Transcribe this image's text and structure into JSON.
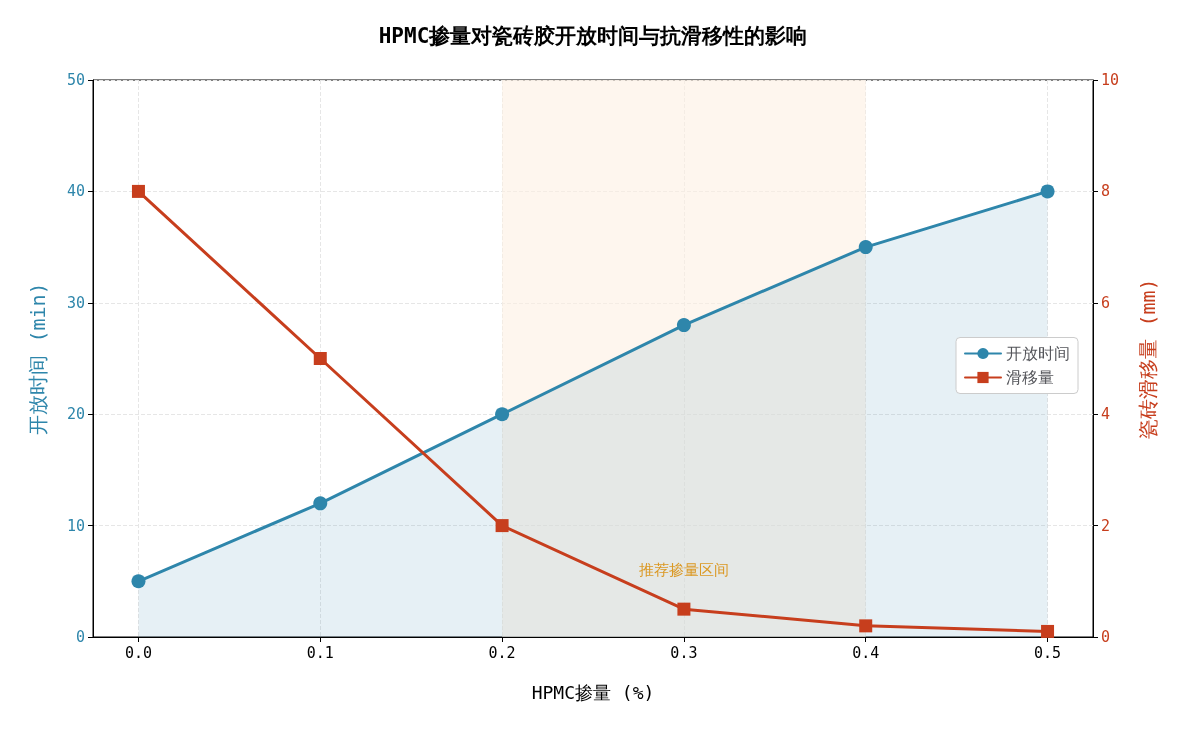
{
  "chart_data": {
    "type": "line",
    "title": "HPMC掺量对瓷砖胶开放时间与抗滑移性的影响",
    "xlabel": "HPMC掺量 (%)",
    "ylabel": "开放时间 (min)",
    "y2label": "瓷砖滑移量 (mm)",
    "x": [
      0,
      0.1,
      0.2,
      0.3,
      0.4,
      0.5
    ],
    "series": [
      {
        "name": "开放时间",
        "type": "area",
        "color": "#2e86ab",
        "marker": "circle",
        "values": [
          5,
          12,
          20,
          28,
          35,
          40
        ]
      },
      {
        "name": "滑移量",
        "color": "#c73e1d",
        "marker": "square",
        "axis": "y2",
        "values": [
          8,
          5,
          2,
          0.5,
          0.2,
          0.1
        ]
      }
    ],
    "xlim": [
      -0.025,
      0.525
    ],
    "xticks": [
      {
        "value": 0,
        "label": "0.0"
      },
      {
        "value": 0.1,
        "label": "0.1"
      },
      {
        "value": 0.2,
        "label": "0.2"
      },
      {
        "value": 0.3,
        "label": "0.3"
      },
      {
        "value": 0.4,
        "label": "0.4"
      },
      {
        "value": 0.5,
        "label": "0.5"
      }
    ],
    "ylim": [
      0,
      50
    ],
    "yticks": [
      0,
      10,
      20,
      30,
      40,
      50
    ],
    "y2lim": [
      0,
      10
    ],
    "y2ticks": [
      0,
      2,
      4,
      6,
      8,
      10
    ],
    "bands": [
      {
        "axis": "x",
        "from": 0.2,
        "to": 0.4,
        "label": "推荐掺量区间",
        "color": "#fdf0e2"
      }
    ],
    "grid": true,
    "legend": "right",
    "line_style": "solid"
  }
}
